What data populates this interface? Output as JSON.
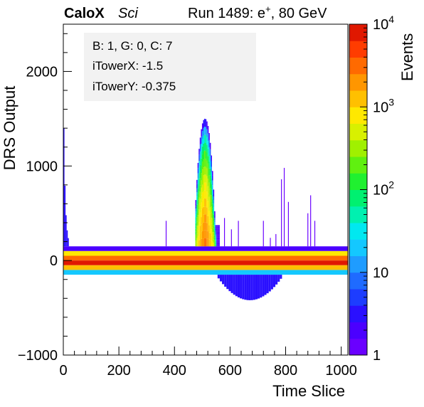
{
  "header": {
    "experiment": "CaloX",
    "tag": "Sci",
    "run_prefix": "Run 1489: e",
    "run_superscript": "+",
    "run_suffix": ", 80 GeV"
  },
  "info_box": {
    "line1": "B: 1, G: 0, C: 7",
    "line2": "iTowerX: -1.5",
    "line3": "iTowerY: -0.375"
  },
  "chart_data": {
    "type": "heatmap",
    "title": "",
    "xlabel": "Time Slice",
    "ylabel": "DRS Output",
    "zlabel": "Events",
    "xlim": [
      0,
      1024
    ],
    "ylim": [
      -1000,
      2500
    ],
    "x_ticks": [
      0,
      200,
      400,
      600,
      800,
      1000
    ],
    "y_ticks": [
      -1000,
      0,
      1000,
      2000
    ],
    "z_scale": "log",
    "zlim": [
      1,
      10000
    ],
    "z_tick_labels": [
      {
        "base": "10",
        "exp": "4",
        "value": 10000
      },
      {
        "base": "10",
        "exp": "3",
        "value": 1000
      },
      {
        "base": "10",
        "exp": "2",
        "value": 100
      },
      {
        "base": "10",
        "exp": "",
        "value": 10
      },
      {
        "base": "1",
        "exp": "",
        "value": 1
      }
    ],
    "colormap": [
      "#6a00ff",
      "#4b00ff",
      "#2a10ff",
      "#1d3dff",
      "#1f6bff",
      "#1f9cff",
      "#14c8ff",
      "#00e8f0",
      "#00f0b0",
      "#00f070",
      "#20f030",
      "#60f010",
      "#a0f000",
      "#d8f000",
      "#ffe800",
      "#ffc000",
      "#ff9600",
      "#ff6a00",
      "#ff3c00",
      "#e01800"
    ],
    "baseline_bands": [
      {
        "y": [
          100,
          150
        ],
        "x": [
          0,
          1024
        ],
        "events": 2
      },
      {
        "y": [
          50,
          100
        ],
        "x": [
          0,
          1024
        ],
        "events": 800
      },
      {
        "y": [
          0,
          50
        ],
        "x": [
          0,
          1024
        ],
        "events": 3000
      },
      {
        "y": [
          -50,
          0
        ],
        "x": [
          0,
          1024
        ],
        "events": 8000
      },
      {
        "y": [
          -100,
          -50
        ],
        "x": [
          0,
          1024
        ],
        "events": 1500
      },
      {
        "y": [
          -150,
          -100
        ],
        "x": [
          0,
          1024
        ],
        "events": 20
      }
    ],
    "pulse": {
      "x_range": [
        475,
        560
      ],
      "peak_x": 510,
      "max_y": 1500,
      "core_events": 3000,
      "edge_events": 2
    },
    "undershoot": {
      "x_range": [
        555,
        780
      ],
      "min_y": -420,
      "events": 3
    },
    "pre_pulse_decay": {
      "x_range": [
        0,
        20
      ],
      "start_y": 1250,
      "events": 3
    },
    "noise_spikes": [
      {
        "x": 370,
        "y_top": 420,
        "events": 1
      },
      {
        "x": 580,
        "y_top": 450,
        "events": 1
      },
      {
        "x": 605,
        "y_top": 330,
        "events": 1
      },
      {
        "x": 630,
        "y_top": 420,
        "events": 1
      },
      {
        "x": 720,
        "y_top": 420,
        "events": 1
      },
      {
        "x": 745,
        "y_top": 240,
        "events": 1
      },
      {
        "x": 765,
        "y_top": 280,
        "events": 1
      },
      {
        "x": 785,
        "y_top": 860,
        "events": 1
      },
      {
        "x": 795,
        "y_top": 980,
        "events": 1
      },
      {
        "x": 810,
        "y_top": 620,
        "events": 1
      },
      {
        "x": 880,
        "y_top": 500,
        "events": 1
      },
      {
        "x": 890,
        "y_top": 690,
        "events": 1
      },
      {
        "x": 905,
        "y_top": 420,
        "events": 1
      }
    ]
  }
}
